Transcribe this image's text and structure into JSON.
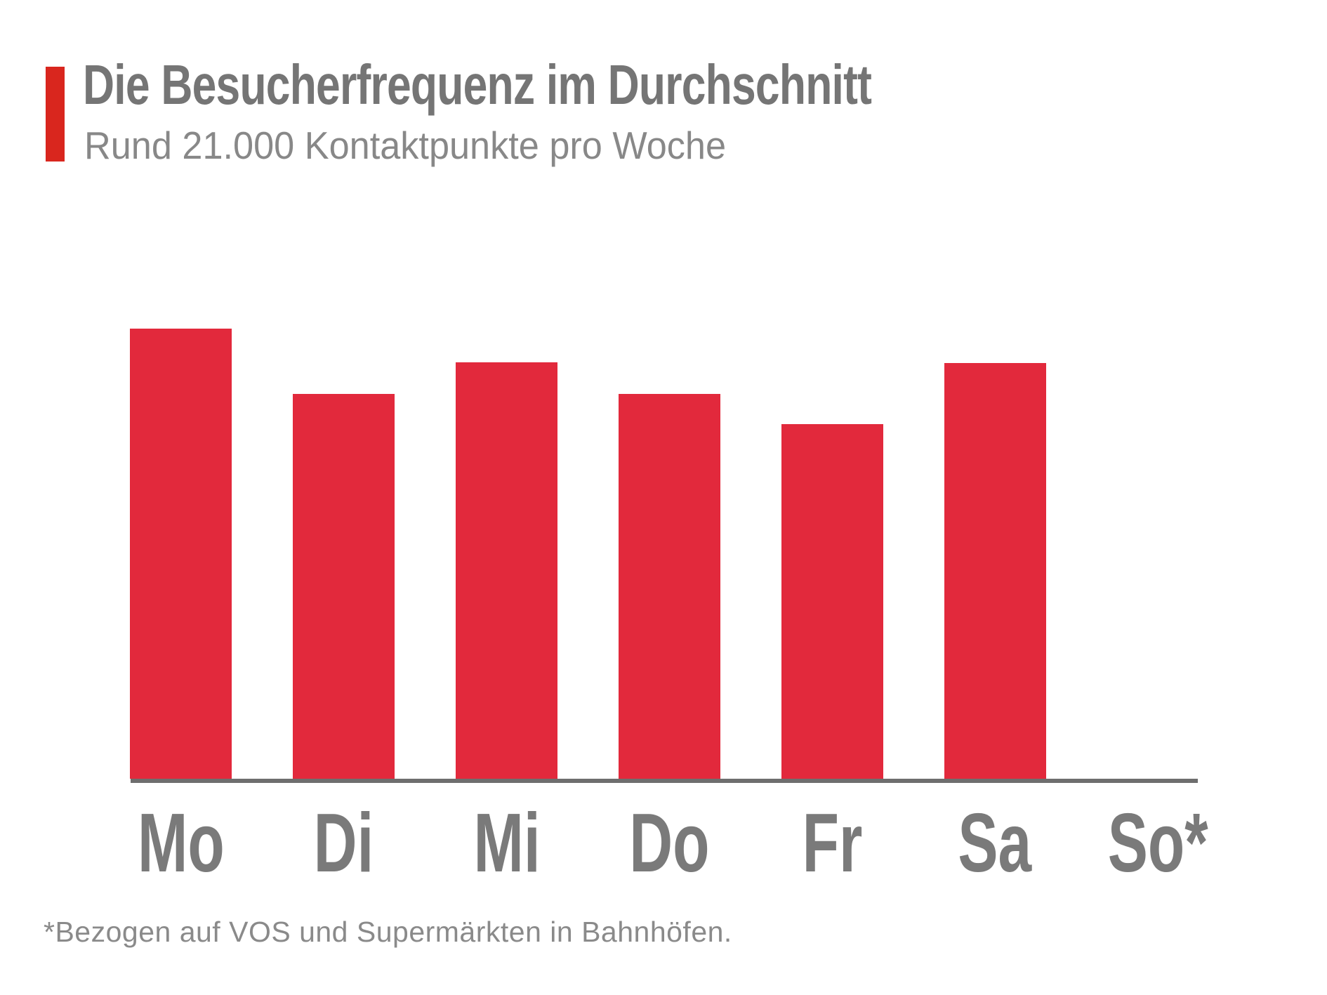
{
  "header": {
    "title": "Die Besucherfrequenz im Durchschnitt",
    "subtitle": "Rund 21.000 Kontaktpunkte pro Woche"
  },
  "chart_data": {
    "type": "bar",
    "title": "Die Besucherfrequenz im Durchschnitt",
    "subtitle": "Rund 21.000 Kontaktpunkte pro Woche",
    "categories": [
      "Mo",
      "Di",
      "Mi",
      "Do",
      "Fr",
      "Sa",
      "So*"
    ],
    "values": [
      100,
      85.5,
      92.5,
      85.5,
      78.8,
      92.4,
      0
    ],
    "value_scale": "percent of tallest bar (no y-axis or value labels shown)",
    "xlabel": "",
    "ylabel": "",
    "grid": false,
    "legend": false,
    "bar_color": "#E2293C",
    "baseline_color": "#6E6E6E"
  },
  "footnote": "*Bezogen auf VOS und Supermärkten in Bahnhöfen.",
  "colors": {
    "accent_red": "#D9261E",
    "bar_red": "#E2293C",
    "title_gray": "#757575",
    "subtitle_gray": "#888888",
    "axis_gray": "#6E6E6E",
    "label_gray": "#7A7A7A",
    "footnote_gray": "#8A8A8A"
  }
}
